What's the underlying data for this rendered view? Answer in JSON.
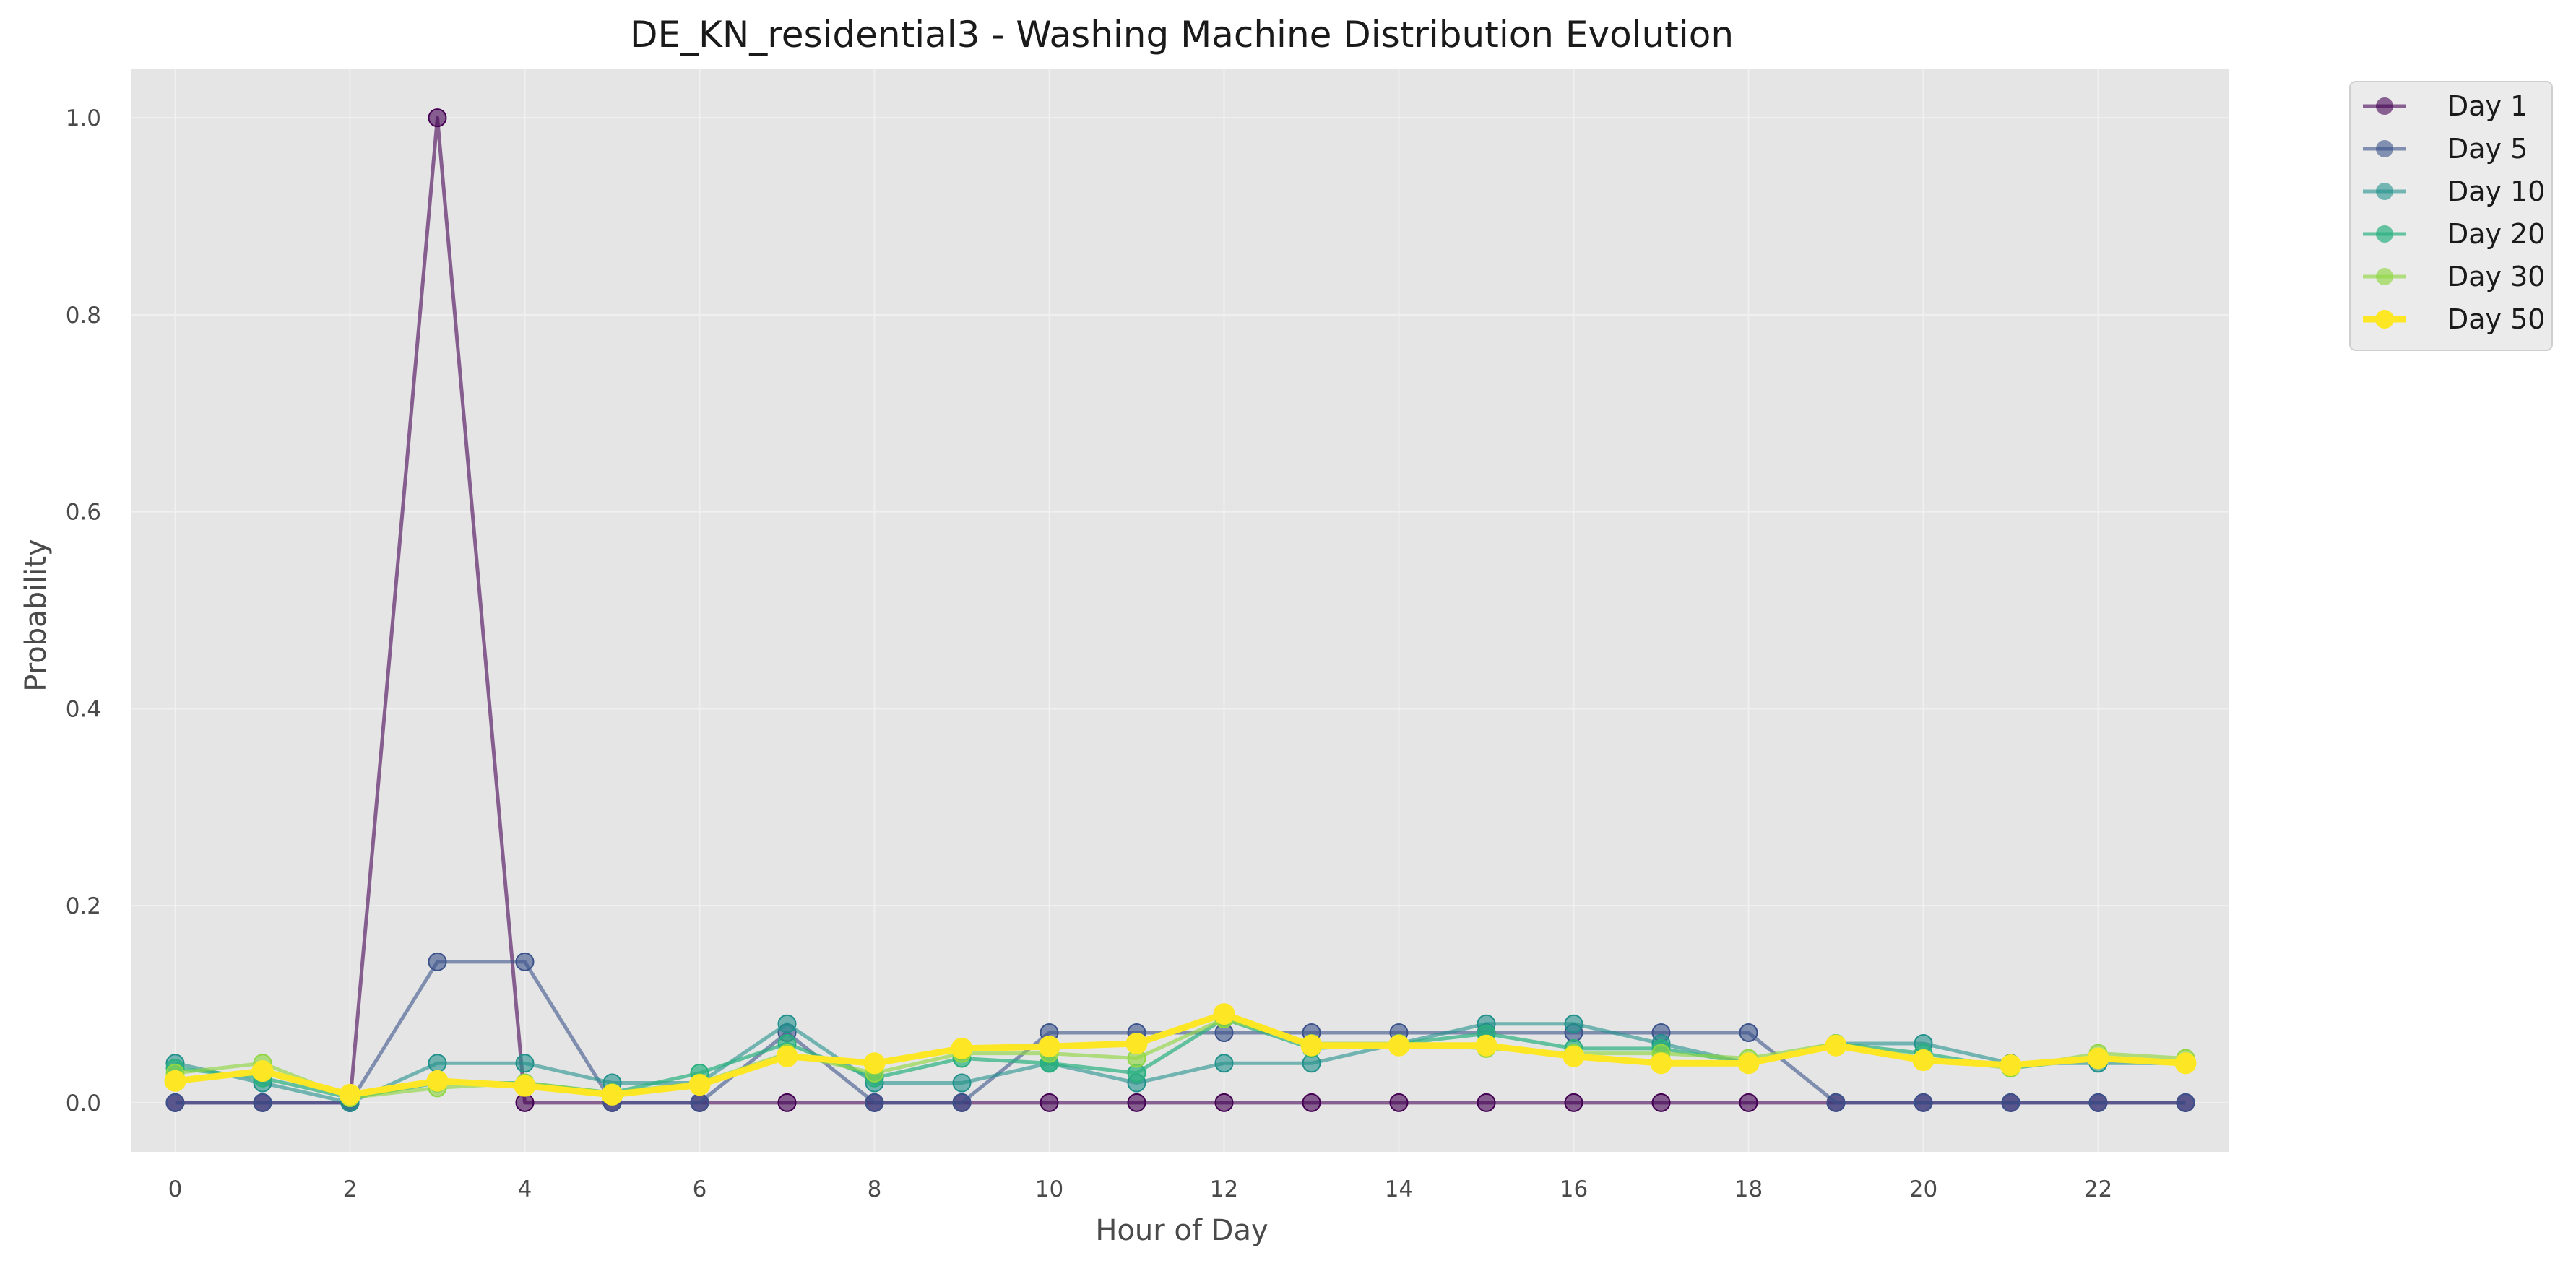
{
  "chart_data": {
    "type": "line",
    "title": "DE_KN_residential3 - Washing Machine Distribution Evolution",
    "xlabel": "Hour of Day",
    "ylabel": "Probability",
    "xlim": [
      -0.5,
      23.5
    ],
    "ylim": [
      -0.05,
      1.05
    ],
    "xticks": [
      0,
      2,
      4,
      6,
      8,
      10,
      12,
      14,
      16,
      18,
      20,
      22
    ],
    "yticks": [
      0.0,
      0.2,
      0.4,
      0.6,
      0.8,
      1.0
    ],
    "ytick_labels": [
      "0.0",
      "0.2",
      "0.4",
      "0.6",
      "0.8",
      "1.0"
    ],
    "xtick_labels": [
      "0",
      "2",
      "4",
      "6",
      "8",
      "10",
      "12",
      "14",
      "16",
      "18",
      "20",
      "22"
    ],
    "grid": true,
    "legend_position": "outside-top-right",
    "background": "#e5e5e5",
    "x": [
      0,
      1,
      2,
      3,
      4,
      5,
      6,
      7,
      8,
      9,
      10,
      11,
      12,
      13,
      14,
      15,
      16,
      17,
      18,
      19,
      20,
      21,
      22,
      23
    ],
    "series": [
      {
        "name": "Day 1",
        "color": "#440154",
        "alpha": 0.6,
        "width": "normal",
        "values": [
          0,
          0,
          0,
          1.0,
          0,
          0,
          0,
          0,
          0,
          0,
          0,
          0,
          0,
          0,
          0,
          0,
          0,
          0,
          0,
          0,
          0,
          0,
          0,
          0
        ]
      },
      {
        "name": "Day 5",
        "color": "#3b528b",
        "alpha": 0.6,
        "width": "normal",
        "values": [
          0,
          0,
          0,
          0.143,
          0.143,
          0,
          0,
          0.071,
          0,
          0,
          0.071,
          0.071,
          0.071,
          0.071,
          0.071,
          0.071,
          0.071,
          0.071,
          0.071,
          0,
          0,
          0,
          0,
          0
        ]
      },
      {
        "name": "Day 10",
        "color": "#21918c",
        "alpha": 0.6,
        "width": "normal",
        "values": [
          0.04,
          0.02,
          0,
          0.04,
          0.04,
          0.02,
          0.02,
          0.08,
          0.02,
          0.02,
          0.04,
          0.02,
          0.04,
          0.04,
          0.06,
          0.08,
          0.08,
          0.06,
          0.04,
          0.06,
          0.06,
          0.04,
          0.04,
          0.04
        ]
      },
      {
        "name": "Day 20",
        "color": "#2ab07f",
        "alpha": 0.7,
        "width": "normal",
        "values": [
          0.035,
          0.025,
          0.005,
          0.02,
          0.02,
          0.01,
          0.03,
          0.06,
          0.025,
          0.045,
          0.04,
          0.03,
          0.085,
          0.055,
          0.06,
          0.07,
          0.055,
          0.055,
          0.04,
          0.06,
          0.05,
          0.035,
          0.045,
          0.04
        ]
      },
      {
        "name": "Day 30",
        "color": "#90d743",
        "alpha": 0.65,
        "width": "normal",
        "values": [
          0.03,
          0.04,
          0.005,
          0.015,
          0.02,
          0.01,
          0.02,
          0.05,
          0.03,
          0.05,
          0.05,
          0.045,
          0.085,
          0.06,
          0.06,
          0.055,
          0.05,
          0.05,
          0.045,
          0.06,
          0.045,
          0.035,
          0.05,
          0.045
        ]
      },
      {
        "name": "Day 50",
        "color": "#fde725",
        "alpha": 1.0,
        "width": "bold",
        "values": [
          0.022,
          0.032,
          0.008,
          0.022,
          0.017,
          0.008,
          0.018,
          0.047,
          0.04,
          0.055,
          0.057,
          0.06,
          0.09,
          0.058,
          0.058,
          0.058,
          0.047,
          0.04,
          0.04,
          0.058,
          0.043,
          0.038,
          0.045,
          0.04
        ]
      }
    ]
  }
}
